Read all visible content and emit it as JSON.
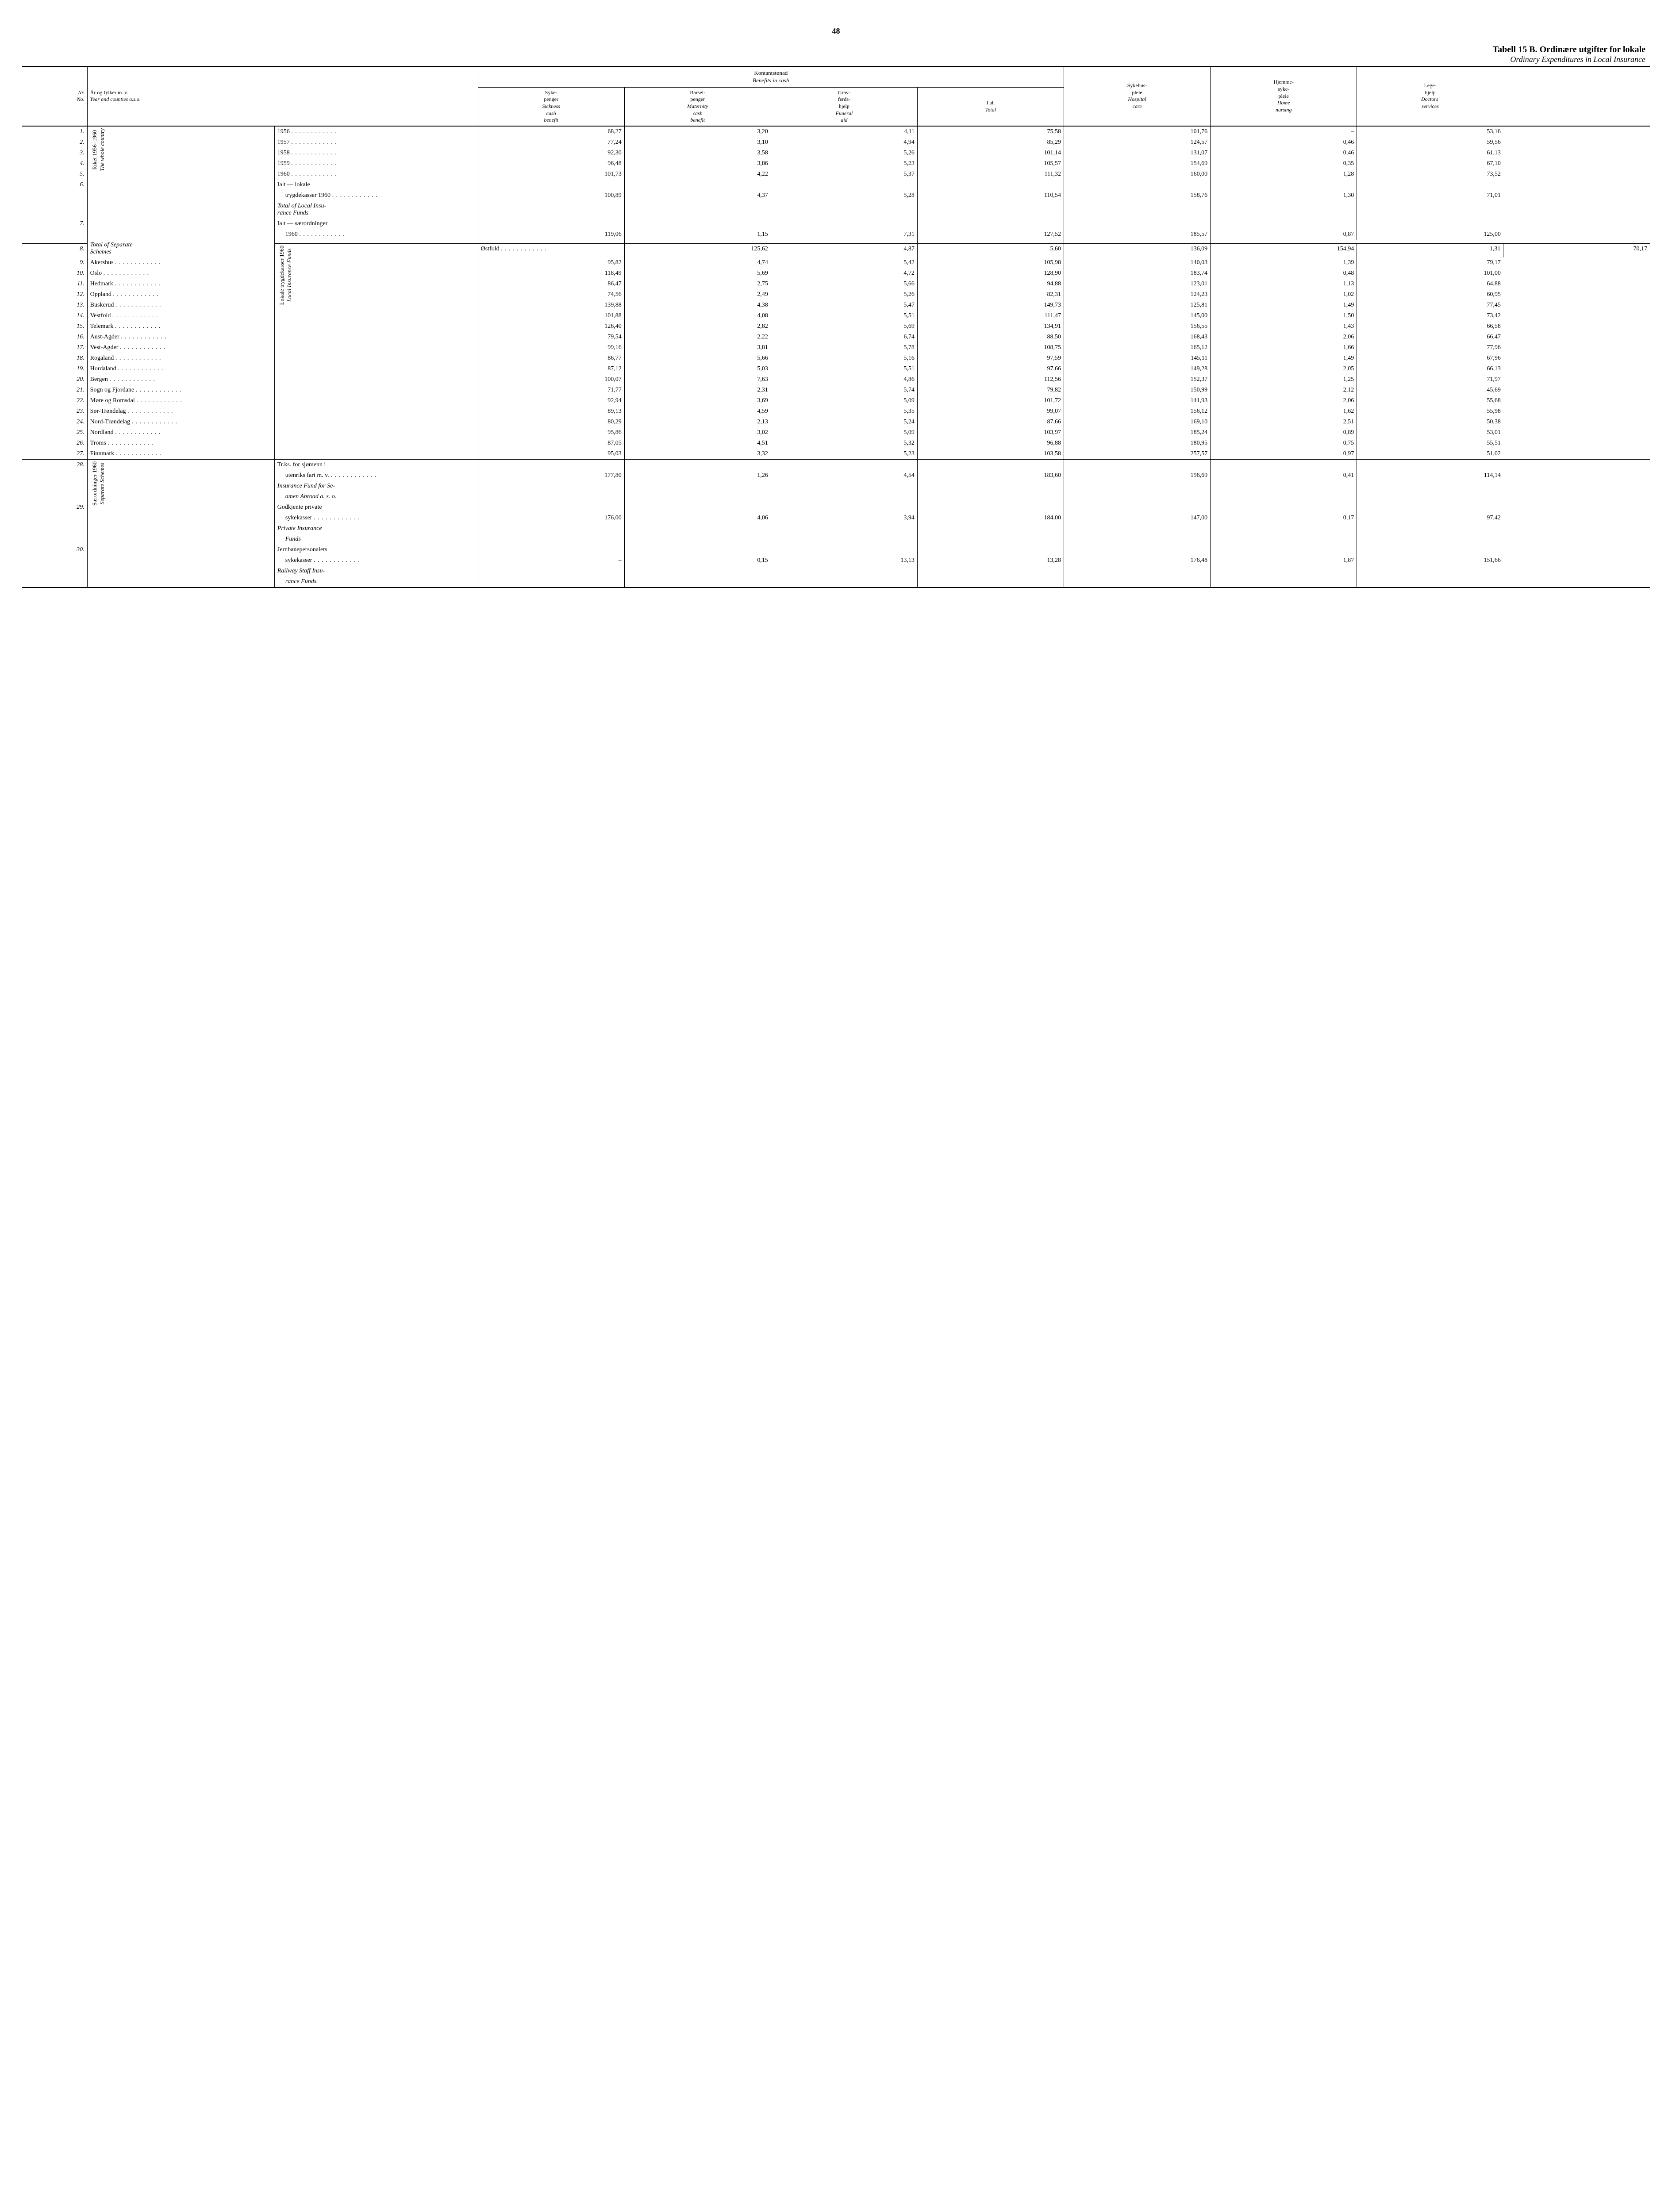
{
  "page_number": "48",
  "title_main": "Tabell 15 B.  Ordinære utgifter for lokale",
  "title_sub": "Ordinary Expenditures in Local Insurance",
  "headers": {
    "nr_no": "Nr.",
    "nr_en": "No.",
    "year_no": "År og fylker m. v.",
    "year_en": "Year and counties a.s.o.",
    "benefits_super_no": "Kontantstønad",
    "benefits_super_en": "Benefits in cash",
    "c1": "Syke-\npenger",
    "c1_en": "Sickness\ncash\nbenefit",
    "c2": "Barsel-\npenger",
    "c2_en": "Maternity\ncash\nbenefit",
    "c3": "Grav-\nferds-\nhjelp",
    "c3_en": "Funeral\naid",
    "c4": "I alt",
    "c4_en": "Total",
    "c5": "Sykehus-\npleie",
    "c5_en": "Hospital\ncare",
    "c6": "Hjemme-\nsyke-\npleie",
    "c6_en": "Home\nnursing",
    "c7": "Lege-\nhjelp",
    "c7_en": "Doctors'\nservices"
  },
  "groups": {
    "g1_no": "Riket 1956–1960",
    "g1_en": "The whole country",
    "g2_no": "Lokale trygdekasser 1960",
    "g2_en": "Local Insurance Funds",
    "g3_no": "Særordninger 1960",
    "g3_en": "Separate Schemes"
  },
  "rows": [
    {
      "nr": "1.",
      "label": "1956",
      "v": [
        "68,27",
        "3,20",
        "4,11",
        "75,58",
        "101,76",
        "–",
        "53,16"
      ]
    },
    {
      "nr": "2.",
      "label": "1957",
      "v": [
        "77,24",
        "3,10",
        "4,94",
        "85,29",
        "124,57",
        "0,46",
        "59,56"
      ]
    },
    {
      "nr": "3.",
      "label": "1958",
      "v": [
        "92,30",
        "3,58",
        "5,26",
        "101,14",
        "131,07",
        "0,46",
        "61,13"
      ]
    },
    {
      "nr": "4.",
      "label": "1959",
      "v": [
        "96,48",
        "3,86",
        "5,23",
        "105,57",
        "154,69",
        "0,35",
        "67,10"
      ]
    },
    {
      "nr": "5.",
      "label": "1960",
      "v": [
        "101,73",
        "4,22",
        "5,37",
        "111,32",
        "160,00",
        "1,28",
        "73,52"
      ]
    },
    {
      "nr": "6.",
      "label_lines": [
        "Ialt — lokale",
        "   trygdekasser 1960"
      ],
      "label_en": [
        "Total of Local Insu-",
        "   rance Funds"
      ],
      "v": [
        "100,89",
        "4,37",
        "5,28",
        "110,54",
        "158,76",
        "1,30",
        "71,01"
      ]
    },
    {
      "nr": "7.",
      "label_lines": [
        "Ialt — særordninger",
        "   1960"
      ],
      "label_en": [
        "Total of Separate",
        "   Schemes"
      ],
      "v": [
        "119,06",
        "1,15",
        "7,31",
        "127,52",
        "185,57",
        "0,87",
        "125,00"
      ]
    },
    {
      "nr": "8.",
      "label": "Østfold",
      "v": [
        "125,62",
        "4,87",
        "5,60",
        "136,09",
        "154,94",
        "1,31",
        "70,17"
      ]
    },
    {
      "nr": "9.",
      "label": "Akershus",
      "v": [
        "95,82",
        "4,74",
        "5,42",
        "105,98",
        "140,03",
        "1,39",
        "79,17"
      ]
    },
    {
      "nr": "10.",
      "label": "Oslo",
      "v": [
        "118,49",
        "5,69",
        "4,72",
        "128,90",
        "183,74",
        "0,48",
        "101,00"
      ]
    },
    {
      "nr": "11.",
      "label": "Hedmark",
      "v": [
        "86,47",
        "2,75",
        "5,66",
        "94,88",
        "123,01",
        "1,13",
        "64,88"
      ]
    },
    {
      "nr": "12.",
      "label": "Oppland",
      "v": [
        "74,56",
        "2,49",
        "5,26",
        "82,31",
        "124,23",
        "1,02",
        "60,95"
      ]
    },
    {
      "nr": "13.",
      "label": "Buskerud",
      "v": [
        "139,88",
        "4,38",
        "5,47",
        "149,73",
        "125,81",
        "1,49",
        "77,45"
      ]
    },
    {
      "nr": "14.",
      "label": "Vestfold",
      "v": [
        "101,88",
        "4,08",
        "5,51",
        "111,47",
        "145,00",
        "1,50",
        "73,42"
      ]
    },
    {
      "nr": "15.",
      "label": "Telemark",
      "v": [
        "126,40",
        "2,82",
        "5,69",
        "134,91",
        "156,55",
        "1,43",
        "66,58"
      ]
    },
    {
      "nr": "16.",
      "label": "Aust-Agder",
      "v": [
        "79,54",
        "2,22",
        "6,74",
        "88,50",
        "168,43",
        "2,06",
        "66,47"
      ]
    },
    {
      "nr": "17.",
      "label": "Vest-Agder",
      "v": [
        "99,16",
        "3,81",
        "5,78",
        "108,75",
        "165,12",
        "1,66",
        "77,96"
      ]
    },
    {
      "nr": "18.",
      "label": "Rogaland",
      "v": [
        "86,77",
        "5,66",
        "5,16",
        "97,59",
        "145,11",
        "1,49",
        "67,96"
      ]
    },
    {
      "nr": "19.",
      "label": "Hordaland",
      "v": [
        "87,12",
        "5,03",
        "5,51",
        "97,66",
        "149,28",
        "2,05",
        "66,13"
      ]
    },
    {
      "nr": "20.",
      "label": "Bergen",
      "v": [
        "100,07",
        "7,63",
        "4,86",
        "112,56",
        "152,37",
        "1,25",
        "71,97"
      ]
    },
    {
      "nr": "21.",
      "label": "Sogn og Fjordane",
      "v": [
        "71,77",
        "2,31",
        "5,74",
        "79,82",
        "150,99",
        "2,12",
        "45,69"
      ]
    },
    {
      "nr": "22.",
      "label": "Møre og Romsdal",
      "v": [
        "92,94",
        "3,69",
        "5,09",
        "101,72",
        "141,93",
        "2,06",
        "55,68"
      ]
    },
    {
      "nr": "23.",
      "label": "Sør-Trøndelag",
      "v": [
        "89,13",
        "4,59",
        "5,35",
        "99,07",
        "156,12",
        "1,62",
        "55,98"
      ]
    },
    {
      "nr": "24.",
      "label": "Nord-Trøndelag",
      "v": [
        "80,29",
        "2,13",
        "5,24",
        "87,66",
        "169,10",
        "2,51",
        "50,38"
      ]
    },
    {
      "nr": "25.",
      "label": "Nordland",
      "v": [
        "95,86",
        "3,02",
        "5,09",
        "103,97",
        "185,24",
        "0,89",
        "53,01"
      ]
    },
    {
      "nr": "26.",
      "label": "Troms",
      "v": [
        "87,05",
        "4,51",
        "5,32",
        "96,88",
        "180,95",
        "0,75",
        "55,51"
      ]
    },
    {
      "nr": "27.",
      "label": "Finnmark",
      "v": [
        "95,03",
        "3,32",
        "5,23",
        "103,58",
        "257,57",
        "0,97",
        "51,02"
      ]
    },
    {
      "nr": "28.",
      "label_lines": [
        "Tr.ks. for sjømenn i",
        "   utenriks fart m. v."
      ],
      "label_en": [
        "Insurance Fund for Se-",
        "   amen Abroad a. s. o."
      ],
      "v": [
        "177,80",
        "1,26",
        "4,54",
        "183,60",
        "196,69",
        "0,41",
        "114,14"
      ]
    },
    {
      "nr": "29.",
      "label_lines": [
        "Godkjente private",
        "   sykekasser"
      ],
      "label_en": [
        "Private Insurance",
        "   Funds"
      ],
      "v": [
        "176,00",
        "4,06",
        "3,94",
        "184,00",
        "147,00",
        "0,17",
        "97,42"
      ]
    },
    {
      "nr": "30.",
      "label_lines": [
        "Jernbanepersonalets",
        "   sykekasser"
      ],
      "label_en": [
        "Railway Staff Insu-",
        "   rance Funds."
      ],
      "v": [
        "–",
        "0,15",
        "13,13",
        "13,28",
        "176,48",
        "1,87",
        "151,66"
      ]
    }
  ]
}
